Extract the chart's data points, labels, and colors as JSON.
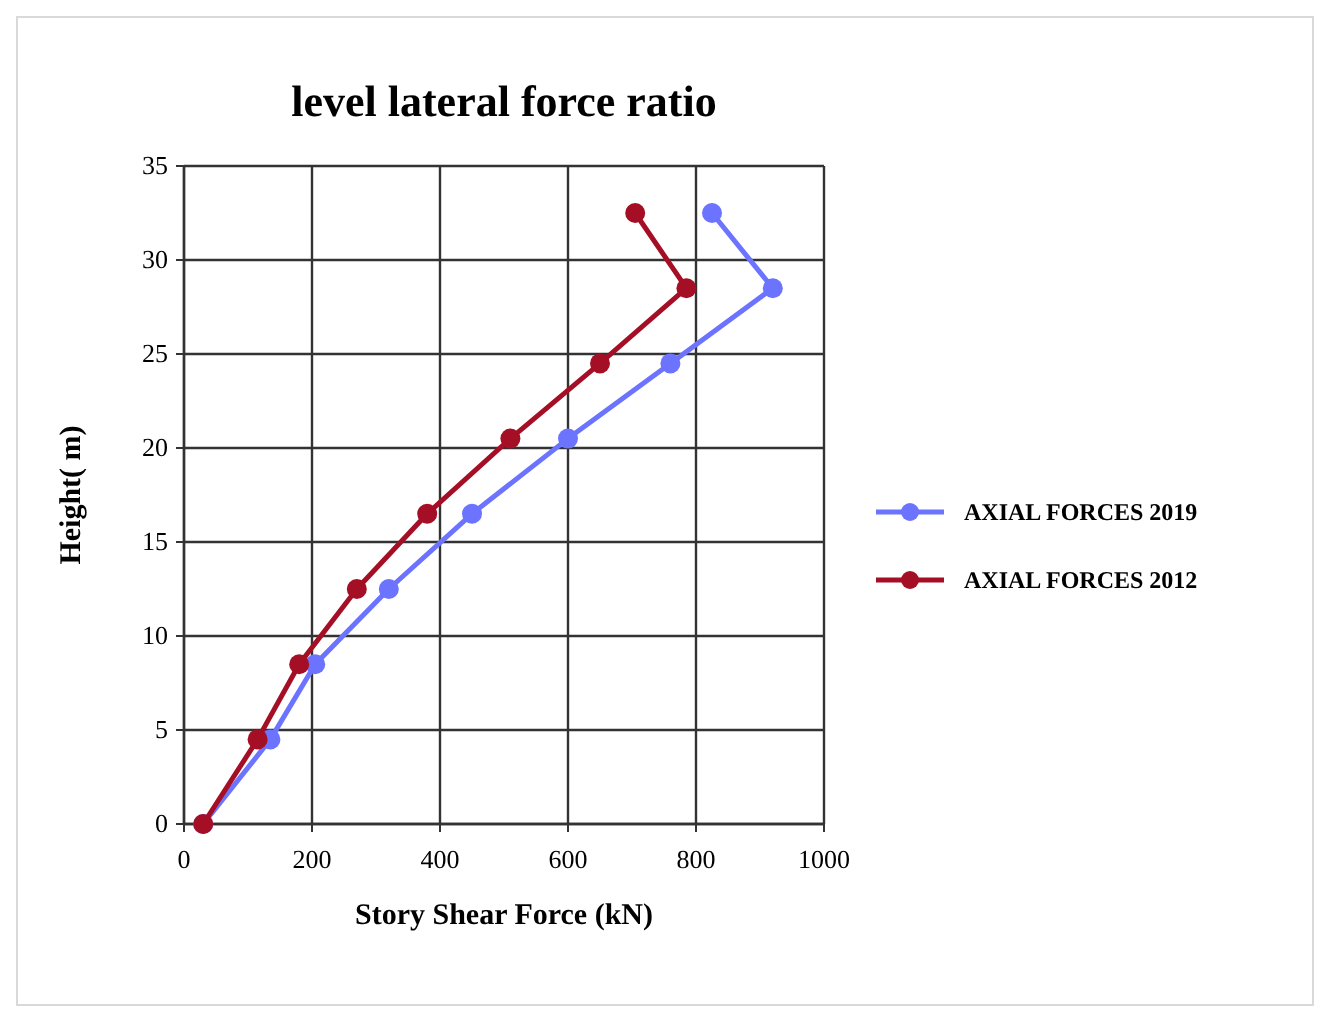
{
  "chart_data": {
    "type": "line",
    "title": "level lateral force ratio",
    "xlabel": "Story Shear Force (kN)",
    "ylabel": "Height( m)",
    "xlim": [
      0,
      1000
    ],
    "xticks": [
      0,
      200,
      400,
      600,
      800,
      1000
    ],
    "ylim": [
      0,
      35
    ],
    "yticks": [
      0,
      5,
      10,
      15,
      20,
      25,
      30,
      35
    ],
    "grid": true,
    "legend": "right",
    "marker": "circle",
    "line_style": "solid",
    "series": [
      {
        "name": "AXIAL FORCES 2019",
        "color": "#6b73ff",
        "x": [
          30,
          135,
          205,
          320,
          450,
          600,
          760,
          920,
          825
        ],
        "values": [
          0,
          4.5,
          8.5,
          12.5,
          16.5,
          20.5,
          24.5,
          28.5,
          32.5
        ]
      },
      {
        "name": "AXIAL FORCES 2012",
        "color": "#a50f26",
        "x": [
          30,
          115,
          180,
          270,
          380,
          510,
          650,
          785,
          705
        ],
        "values": [
          0,
          4.5,
          8.5,
          12.5,
          16.5,
          20.5,
          24.5,
          28.5,
          32.5
        ]
      }
    ]
  }
}
